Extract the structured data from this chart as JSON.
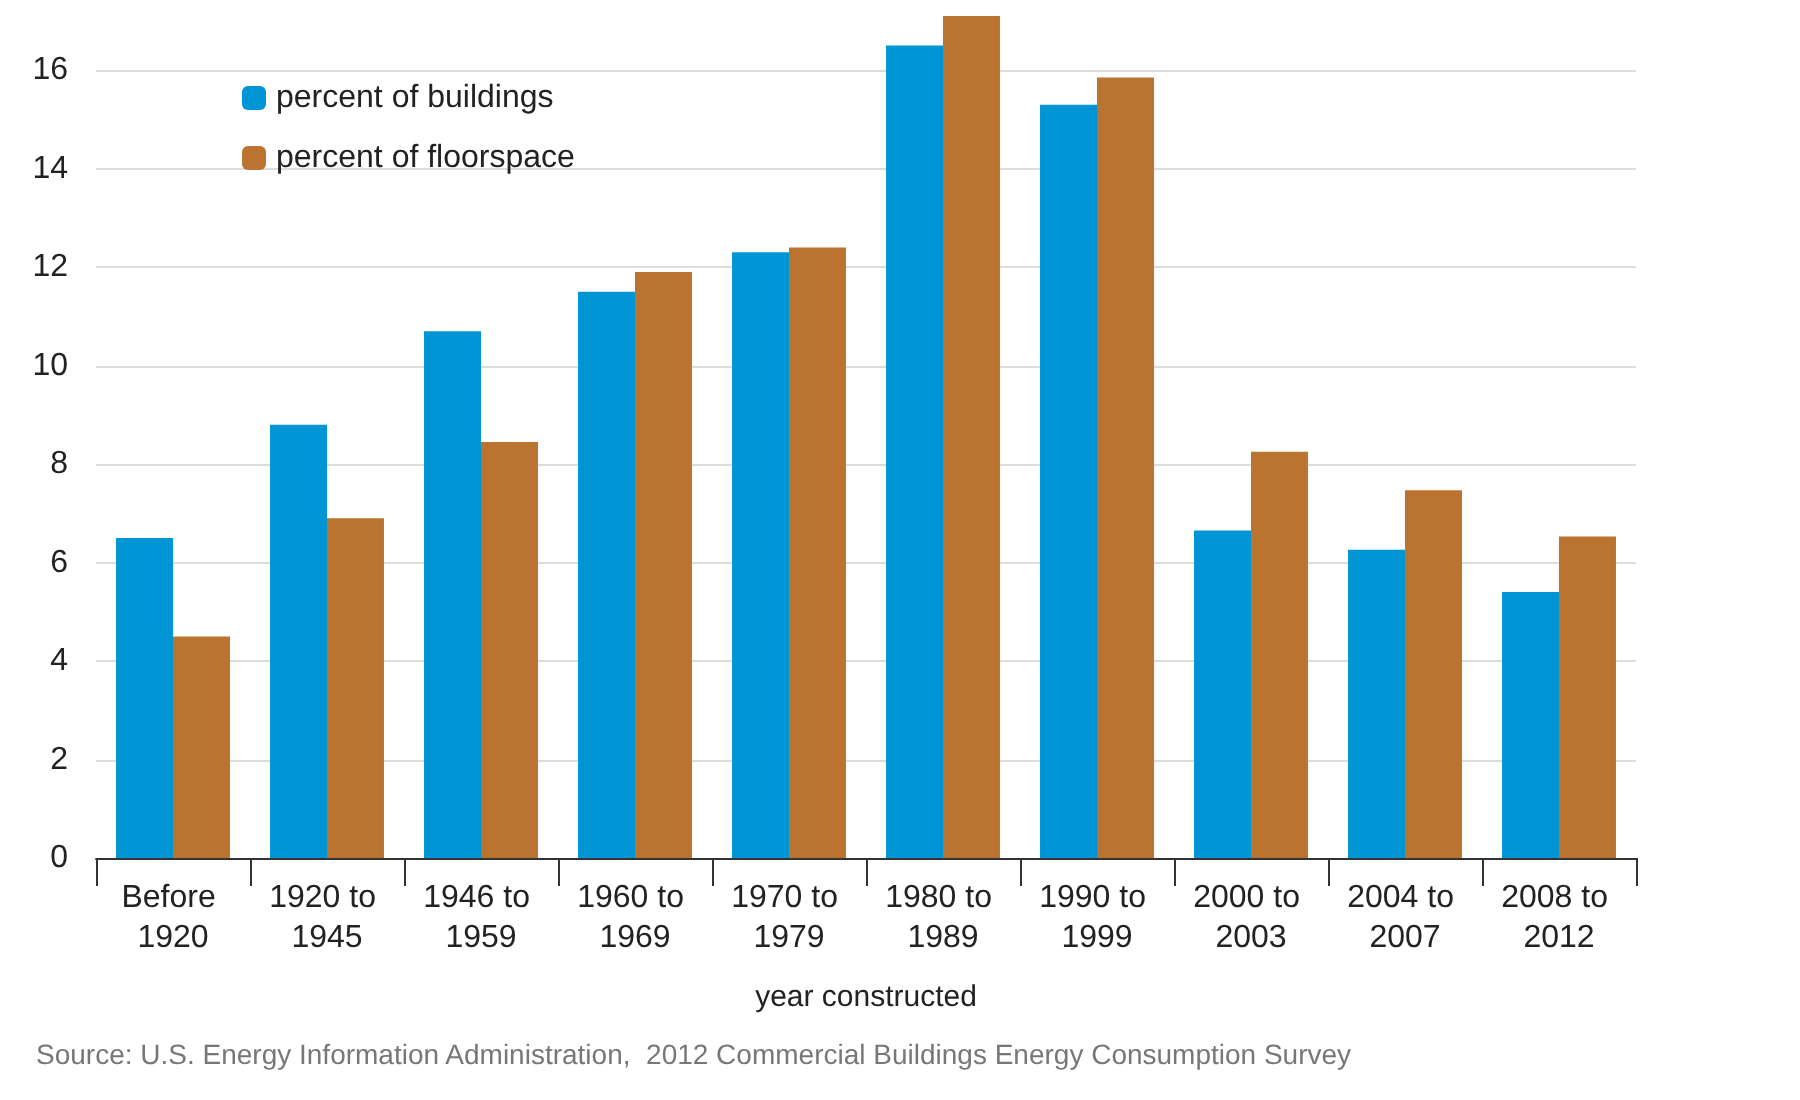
{
  "chart_data": {
    "type": "bar",
    "xlabel": "year constructed",
    "categories": [
      "Before 1920",
      "1920 to 1945",
      "1946 to 1959",
      "1960 to 1969",
      "1970 to 1979",
      "1980 to 1989",
      "1990 to 1999",
      "2000 to 2003",
      "2004 to 2007",
      "2008 to 2012"
    ],
    "series": [
      {
        "name": "percent of buildings",
        "color": "#0096d6",
        "values": [
          6.5,
          8.8,
          10.7,
          11.5,
          12.3,
          16.5,
          15.3,
          6.65,
          6.26,
          5.4
        ]
      },
      {
        "name": "percent of floorspace",
        "color": "#bb742f",
        "values": [
          4.5,
          6.9,
          8.45,
          11.9,
          12.4,
          17.1,
          15.85,
          8.25,
          7.47,
          6.53
        ]
      }
    ],
    "ylim": [
      0,
      17.1
    ],
    "yticks": [
      0,
      2,
      4,
      6,
      8,
      10,
      12,
      14,
      16
    ],
    "grid": "y",
    "legend": "top left",
    "annotations": [
      "Source: U.S. Energy Information Administration,  2012 Commercial Buildings Energy Consumption Survey"
    ]
  }
}
